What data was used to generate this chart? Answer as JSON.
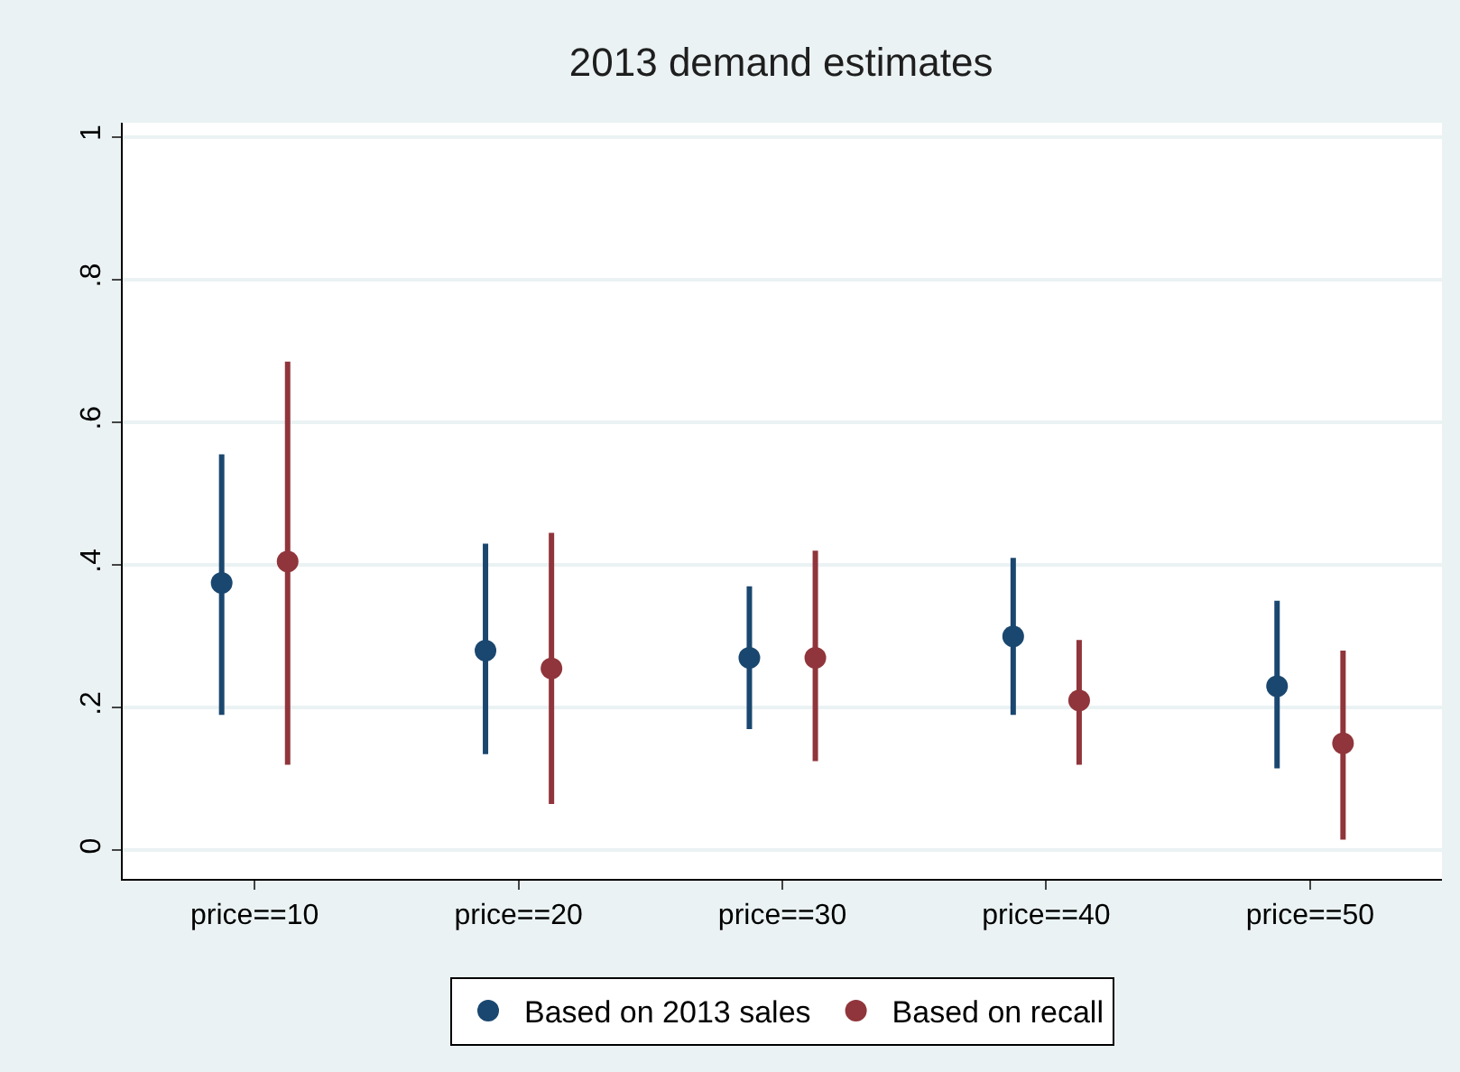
{
  "chart_data": {
    "type": "scatter",
    "title": "2013 demand estimates",
    "categories": [
      "price==10",
      "price==20",
      "price==30",
      "price==40",
      "price==50"
    ],
    "series": [
      {
        "name": "Based on 2013 sales",
        "color": "#1a476f",
        "values": [
          0.375,
          0.28,
          0.27,
          0.3,
          0.23
        ],
        "errors": [
          [
            0.19,
            0.555
          ],
          [
            0.135,
            0.43
          ],
          [
            0.17,
            0.37
          ],
          [
            0.19,
            0.41
          ],
          [
            0.115,
            0.35
          ]
        ]
      },
      {
        "name": "Based on recall",
        "color": "#90353b",
        "values": [
          0.405,
          0.255,
          0.27,
          0.21,
          0.15
        ],
        "errors": [
          [
            0.12,
            0.685
          ],
          [
            0.065,
            0.445
          ],
          [
            0.125,
            0.42
          ],
          [
            0.12,
            0.295
          ],
          [
            0.015,
            0.28
          ]
        ]
      }
    ],
    "ylim": [
      -0.04,
      1.02
    ],
    "yticks": [
      {
        "value": 0,
        "label": "0"
      },
      {
        "value": 0.2,
        "label": ".2"
      },
      {
        "value": 0.4,
        "label": ".4"
      },
      {
        "value": 0.6,
        "label": ".6"
      },
      {
        "value": 0.8,
        "label": ".8"
      },
      {
        "value": 1,
        "label": "1"
      }
    ],
    "grid": "y",
    "legend": "bottom",
    "marker": "circle"
  }
}
